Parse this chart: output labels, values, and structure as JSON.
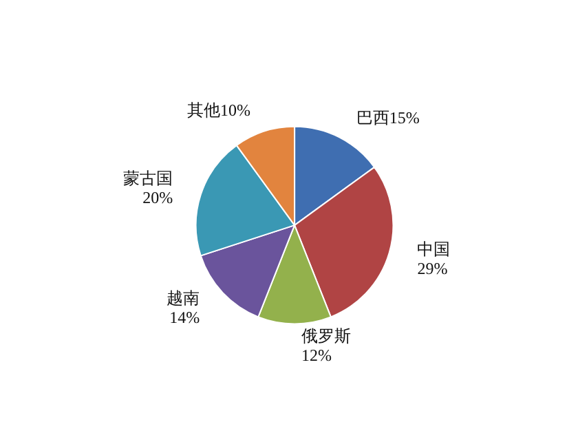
{
  "chart_data": {
    "type": "pie",
    "categories": [
      "巴西",
      "中国",
      "俄罗斯",
      "越南",
      "蒙古国",
      "其他"
    ],
    "values": [
      15,
      29,
      12,
      14,
      20,
      10
    ],
    "value_labels": [
      "15%",
      "29%",
      "12%",
      "14%",
      "20%",
      "10%"
    ],
    "colors": [
      "#3f6eb1",
      "#b04444",
      "#93b14c",
      "#6a549c",
      "#3a98b4",
      "#e2843e"
    ],
    "legend": false
  }
}
